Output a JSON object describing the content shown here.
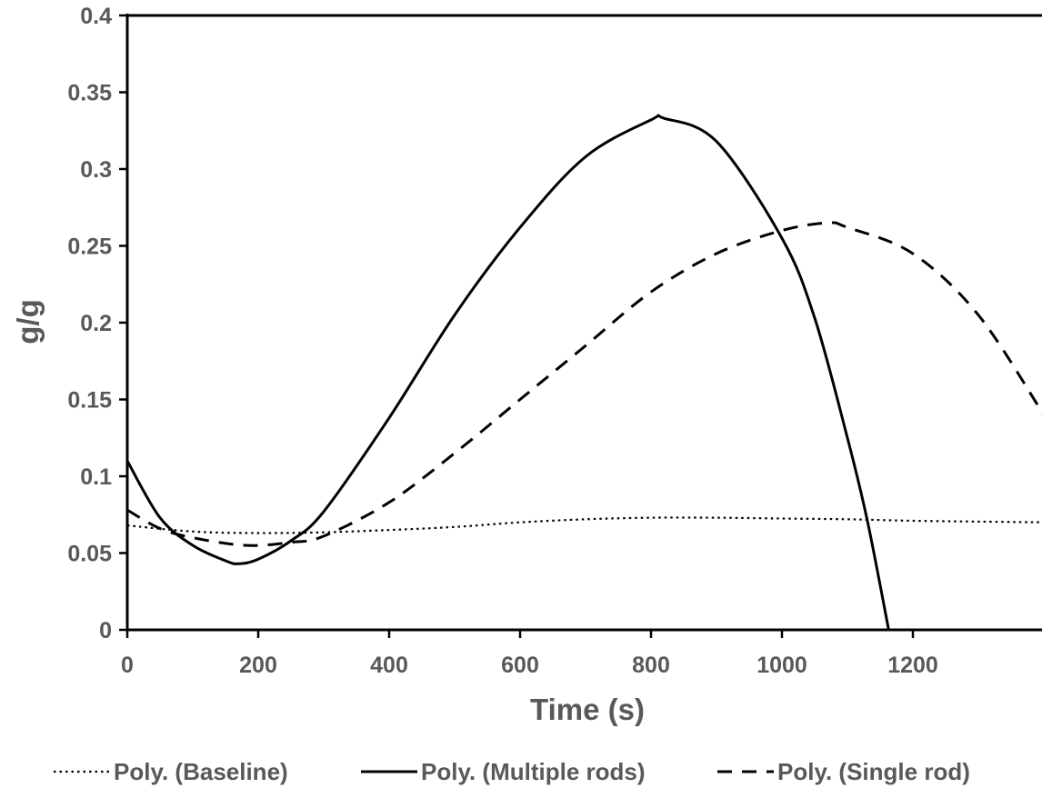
{
  "chart_data": {
    "type": "line",
    "title": "",
    "xlabel": "Time (s)",
    "ylabel": "g/g",
    "xlim": [
      0,
      1400
    ],
    "ylim": [
      0,
      0.4
    ],
    "x_ticks": [
      "0",
      "200",
      "400",
      "600",
      "800",
      "1000",
      "1200"
    ],
    "y_ticks": [
      "0",
      "0.05",
      "0.1",
      "0.15",
      "0.2",
      "0.25",
      "0.3",
      "0.35",
      "0.4"
    ],
    "grid": false,
    "legend_position": "bottom",
    "series": [
      {
        "name": "Poly. (Baseline)",
        "style": "dotted",
        "color": "#000000",
        "x": [
          0,
          100,
          200,
          300,
          400,
          500,
          600,
          700,
          800,
          900,
          1000,
          1100,
          1200,
          1300,
          1400
        ],
        "y": [
          0.068,
          0.064,
          0.063,
          0.0635,
          0.065,
          0.067,
          0.07,
          0.072,
          0.073,
          0.073,
          0.0725,
          0.072,
          0.071,
          0.0705,
          0.07
        ]
      },
      {
        "name": "Poly. (Multiple rods)",
        "style": "solid",
        "color": "#000000",
        "x": [
          0,
          50,
          100,
          150,
          170,
          200,
          250,
          300,
          400,
          500,
          600,
          700,
          800,
          820,
          900,
          1000,
          1050,
          1100,
          1130,
          1163
        ],
        "y": [
          0.11,
          0.073,
          0.055,
          0.045,
          0.043,
          0.046,
          0.058,
          0.077,
          0.138,
          0.205,
          0.262,
          0.308,
          0.332,
          0.333,
          0.318,
          0.255,
          0.203,
          0.125,
          0.072,
          0.0
        ]
      },
      {
        "name": "Poly. (Single rod)",
        "style": "dashed",
        "color": "#000000",
        "x": [
          0,
          50,
          100,
          180,
          250,
          300,
          400,
          500,
          600,
          700,
          800,
          900,
          1000,
          1070,
          1100,
          1200,
          1300,
          1400
        ],
        "y": [
          0.078,
          0.066,
          0.06,
          0.055,
          0.057,
          0.061,
          0.083,
          0.115,
          0.15,
          0.185,
          0.22,
          0.245,
          0.26,
          0.265,
          0.262,
          0.245,
          0.205,
          0.14
        ]
      }
    ]
  }
}
